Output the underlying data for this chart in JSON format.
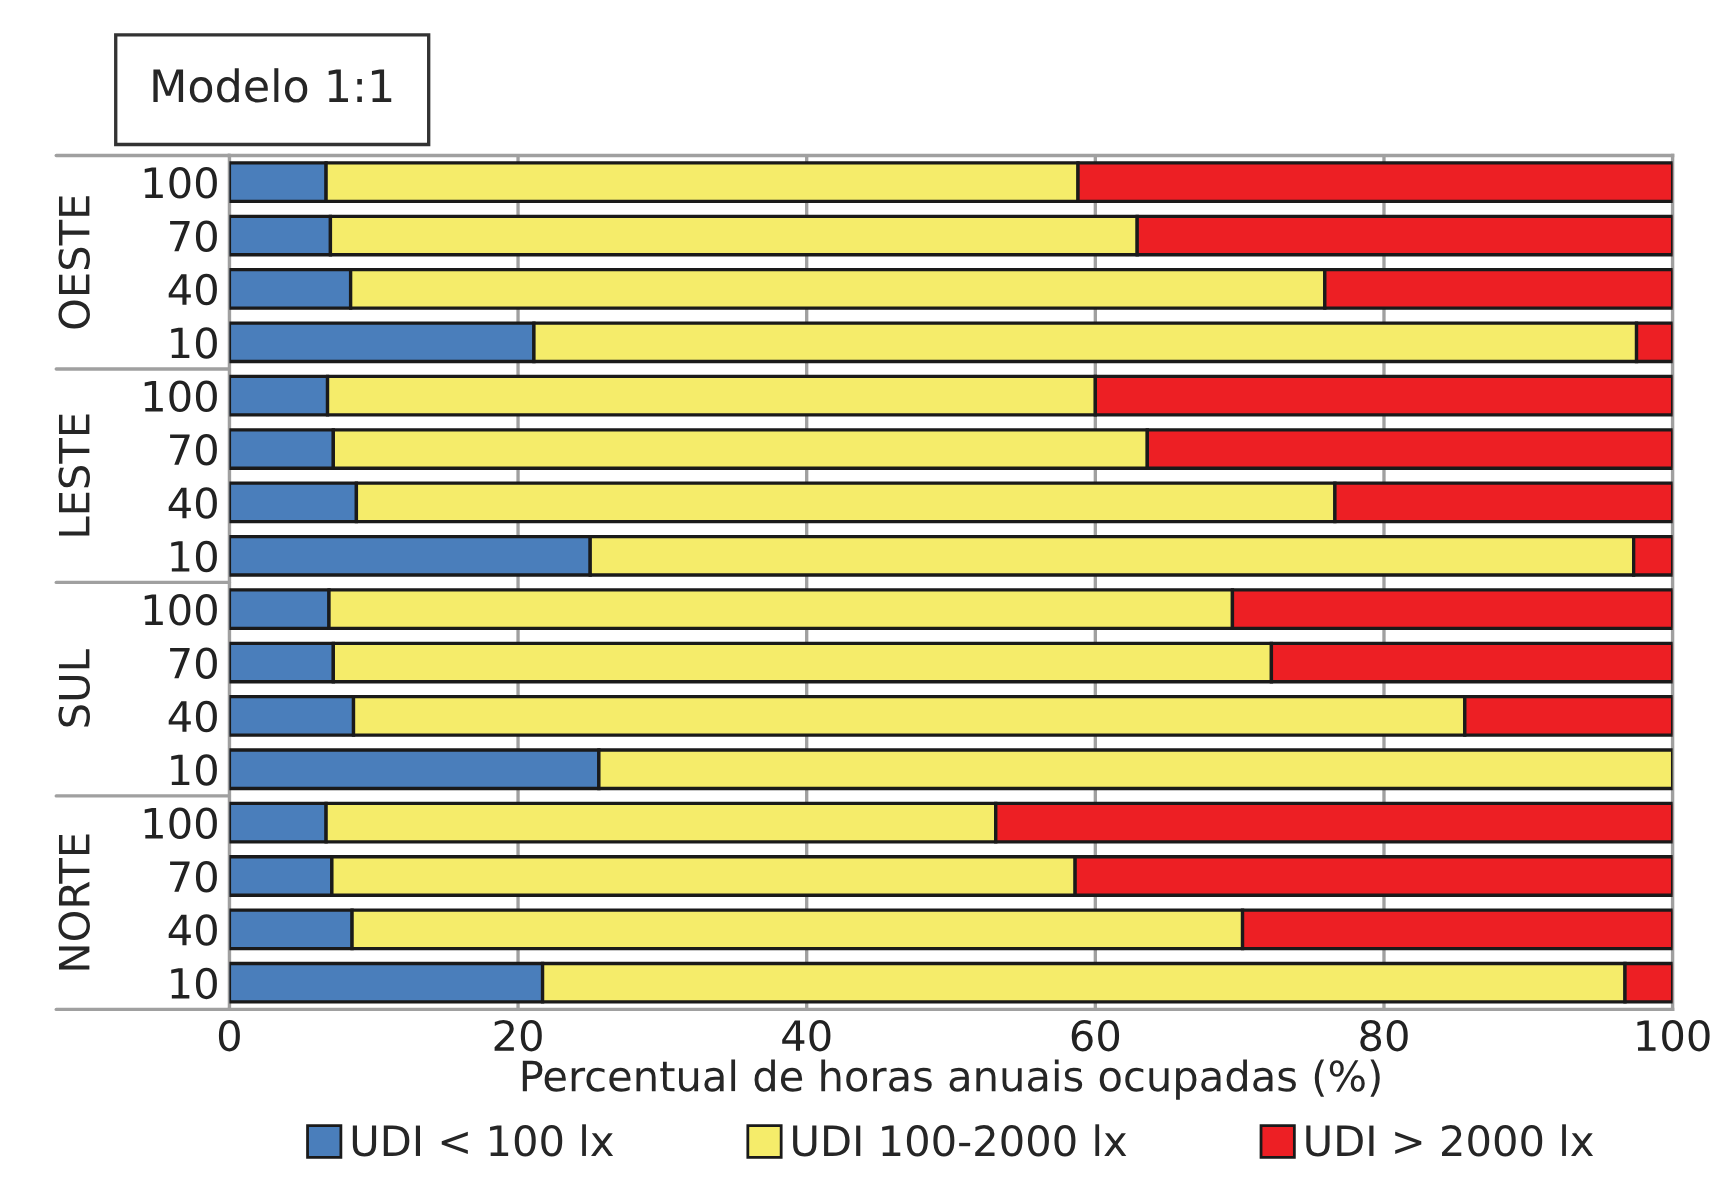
{
  "chart_data": {
    "type": "bar",
    "orientation": "horizontal",
    "stacked": true,
    "title": "Modelo 1:1",
    "xlabel": "Percentual de horas anuais ocupadas (%)",
    "categories": [
      "100",
      "70",
      "40",
      "10",
      "100",
      "70",
      "40",
      "10",
      "100",
      "70",
      "40",
      "10",
      "100",
      "70",
      "40",
      "10"
    ],
    "annotations": [
      "OESTE",
      "LESTE",
      "SUL",
      "NORTE"
    ],
    "series": [
      {
        "name": "UDI < 100 lx",
        "color": "#4a7ebb",
        "values": [
          6.7,
          7.0,
          8.4,
          21.1,
          6.8,
          7.2,
          8.8,
          25.0,
          6.9,
          7.2,
          8.6,
          25.6,
          6.7,
          7.1,
          8.5,
          21.7
        ]
      },
      {
        "name": "UDI 100-2000 lx",
        "color": "#f5ec6a",
        "values": [
          52.1,
          55.9,
          67.5,
          76.4,
          53.2,
          56.4,
          67.8,
          72.3,
          62.6,
          65.0,
          77.0,
          74.4,
          46.4,
          51.5,
          61.7,
          75.0
        ]
      },
      {
        "name": "UDI > 2000 lx",
        "color": "#ed1f24",
        "values": [
          41.2,
          37.1,
          24.1,
          2.5,
          40.0,
          36.4,
          23.4,
          2.7,
          30.5,
          27.8,
          14.4,
          null,
          46.9,
          41.4,
          29.8,
          3.3
        ]
      }
    ],
    "xlim": [
      0,
      100
    ],
    "xticks": [
      0,
      20,
      40,
      60,
      80,
      100
    ],
    "grid": "x",
    "legend": "bottom"
  }
}
